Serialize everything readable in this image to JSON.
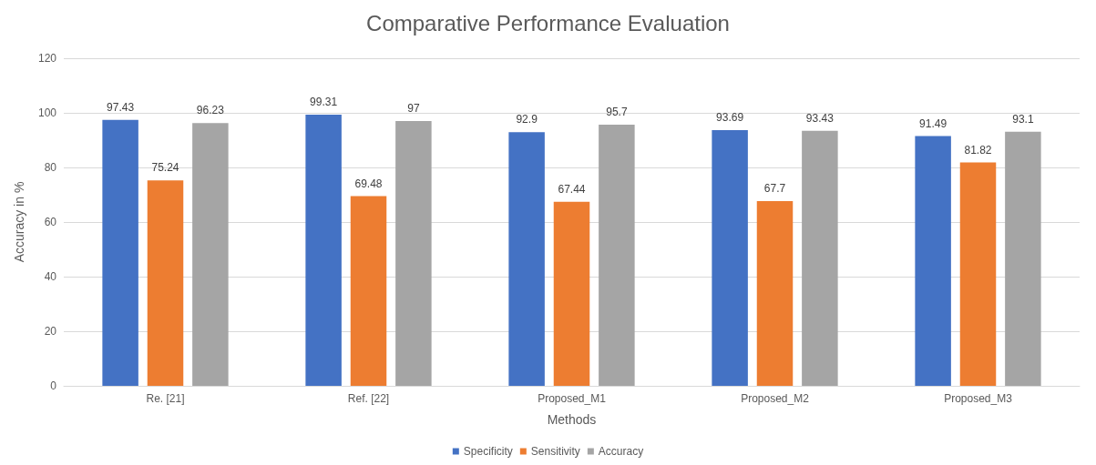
{
  "chart_data": {
    "type": "bar",
    "title": "Comparative Performance Evaluation",
    "xlabel": "Methods",
    "ylabel": "Accuracy in %",
    "categories": [
      "Re. [21]",
      "Ref. [22]",
      "Proposed_M1",
      "Proposed_M2",
      "Proposed_M3"
    ],
    "series": [
      {
        "name": "Specificity",
        "color": "#4472c4",
        "values": [
          97.43,
          99.31,
          92.9,
          93.69,
          91.49
        ]
      },
      {
        "name": "Sensitivity",
        "color": "#ed7d31",
        "values": [
          75.24,
          69.48,
          67.44,
          67.7,
          81.82
        ]
      },
      {
        "name": "Accuracy",
        "color": "#a5a5a5",
        "values": [
          96.23,
          97,
          95.7,
          93.43,
          93.1
        ]
      }
    ],
    "ylim": [
      0,
      120
    ],
    "yticks": [
      0,
      20,
      40,
      60,
      80,
      100,
      120
    ],
    "grid": "y",
    "legend": "bottom",
    "data_labels": true
  }
}
